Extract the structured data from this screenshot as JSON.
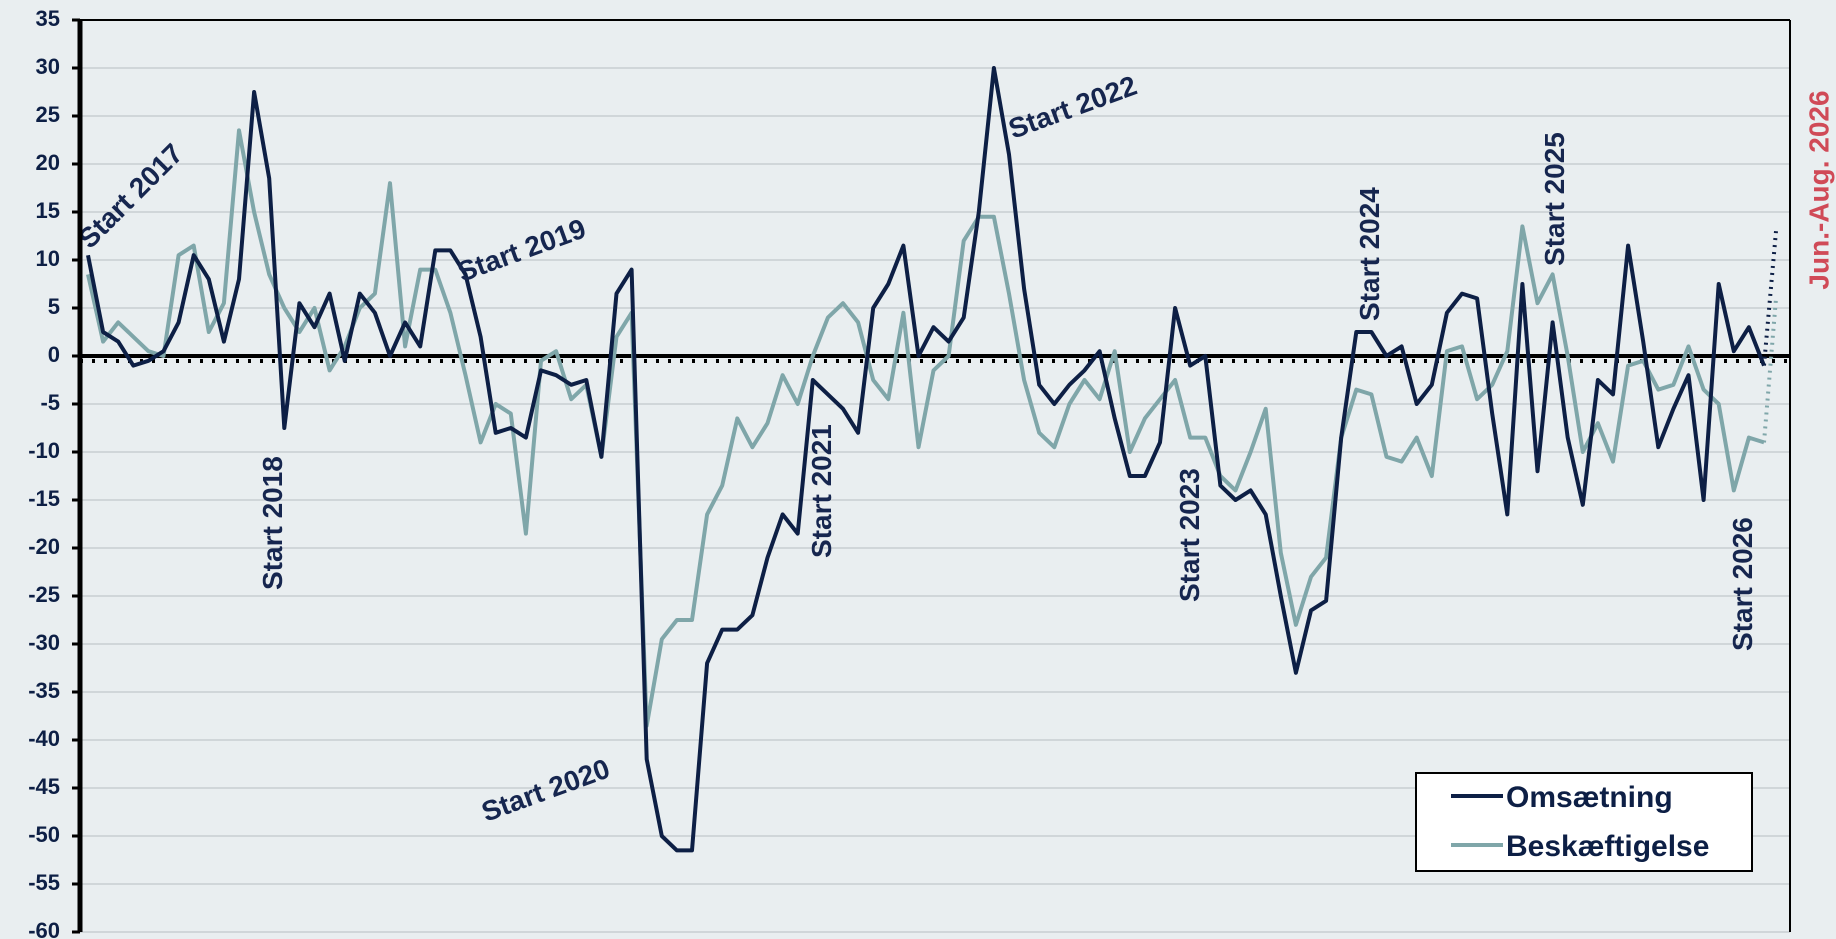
{
  "chart_data": {
    "type": "line",
    "ylim": [
      -60,
      35
    ],
    "yticks": [
      35,
      30,
      25,
      20,
      15,
      10,
      5,
      0,
      -5,
      -10,
      -15,
      -20,
      -25,
      -30,
      -35,
      -40,
      -45,
      -50,
      -55,
      -60
    ],
    "ytick_labels": [
      "35",
      "30",
      "25",
      "20",
      "15",
      "10",
      "5",
      "0",
      "-5",
      "-10",
      "-15",
      "-20",
      "-25",
      "-30",
      "-35",
      "-40",
      "-45",
      "-50",
      "-55",
      "-60"
    ],
    "grid": true,
    "legend_position": "bottom-right",
    "colors": {
      "background": "#e9eef0",
      "omsaetning": "#0d1f45",
      "beskaeftigelse": "#7fa6a9",
      "highlight": "#d04a57"
    },
    "series": [
      {
        "name": "Omsætning",
        "values": [
          10.5,
          2.5,
          1.5,
          -1,
          -0.5,
          0.5,
          3.5,
          10.5,
          8,
          1.5,
          8,
          27.5,
          18.5,
          -7.5,
          5.5,
          3,
          6.5,
          -0.5,
          6.5,
          4.5,
          0,
          3.5,
          1,
          11,
          11,
          8.5,
          2,
          -8,
          -7.5,
          -8.5,
          -1.5,
          -2,
          -3,
          -2.5,
          -10.5,
          6.5,
          9,
          -42,
          -50,
          -51.5,
          -51.5,
          -32,
          -28.5,
          -28.5,
          -27,
          -21,
          -16.5,
          -18.5,
          -2.5,
          -4,
          -5.5,
          -8,
          5,
          7.5,
          11.5,
          0,
          3,
          1.5,
          4,
          15,
          30,
          21,
          7,
          -3,
          -5,
          -3,
          -1.5,
          0.5,
          -6.5,
          -12.5,
          -12.5,
          -9,
          5,
          -1,
          0,
          -13.5,
          -15,
          -14,
          -16.5,
          -25,
          -33,
          -26.5,
          -25.5,
          -8.5,
          2.5,
          2.5,
          0,
          1,
          -5,
          -3,
          4.5,
          6.5,
          6,
          -6,
          -16.5,
          7.5,
          -12,
          3.5,
          -8.5,
          -15.5,
          -2.5,
          -4,
          11.5,
          1.5,
          -9.5,
          -5.5,
          -2,
          -15,
          7.5,
          0.5,
          3,
          -1
        ],
        "forecast": [
          -1,
          13
        ]
      },
      {
        "name": "Beskæftigelse",
        "values": [
          8.5,
          1.5,
          3.5,
          2,
          0.5,
          0,
          10.5,
          11.5,
          2.5,
          5.5,
          23.5,
          15,
          8.5,
          5,
          2.5,
          5,
          -1.5,
          1,
          5,
          6.5,
          18,
          1,
          9,
          9,
          4.5,
          -2,
          -9,
          -5,
          -6,
          -18.5,
          -0.5,
          0.5,
          -4.5,
          -3,
          -10.5,
          2,
          4.5,
          -38.5,
          -29.5,
          -27.5,
          -27.5,
          -16.5,
          -13.5,
          -6.5,
          -9.5,
          -7,
          -2,
          -5,
          0,
          4,
          5.5,
          3.5,
          -2.5,
          -4.5,
          4.5,
          -9.5,
          -1.5,
          0,
          12,
          14.5,
          14.5,
          6.5,
          -2.5,
          -8,
          -9.5,
          -5,
          -2.5,
          -4.5,
          0.5,
          -10,
          -6.5,
          -4.5,
          -2.5,
          -8.5,
          -8.5,
          -12.5,
          -14,
          -10,
          -5.5,
          -20.5,
          -28,
          -23,
          -21,
          -8.5,
          -3.5,
          -4,
          -10.5,
          -11,
          -8.5,
          -12.5,
          0.5,
          1,
          -4.5,
          -3,
          0.5,
          13.5,
          5.5,
          8.5,
          0,
          -10,
          -7,
          -11,
          -1,
          -0.5,
          -3.5,
          -3,
          1,
          -3.5,
          -5,
          -14,
          -8.5,
          -9
        ],
        "forecast": [
          -9,
          6
        ]
      }
    ],
    "annotations": [
      {
        "text": "Start 2017",
        "index": 0
      },
      {
        "text": "Start 2018",
        "index": 13
      },
      {
        "text": "Start 2019",
        "index": 25
      },
      {
        "text": "Start 2020",
        "index": 37
      },
      {
        "text": "Start 2021",
        "index": 49
      },
      {
        "text": "Start 2022",
        "index": 61
      },
      {
        "text": "Start 2023",
        "index": 73
      },
      {
        "text": "Start 2024",
        "index": 85
      },
      {
        "text": "Start 2025",
        "index": 97
      },
      {
        "text": "Start 2026",
        "index": 109
      }
    ],
    "forecast_label": "Jun.-Aug. 2026"
  }
}
